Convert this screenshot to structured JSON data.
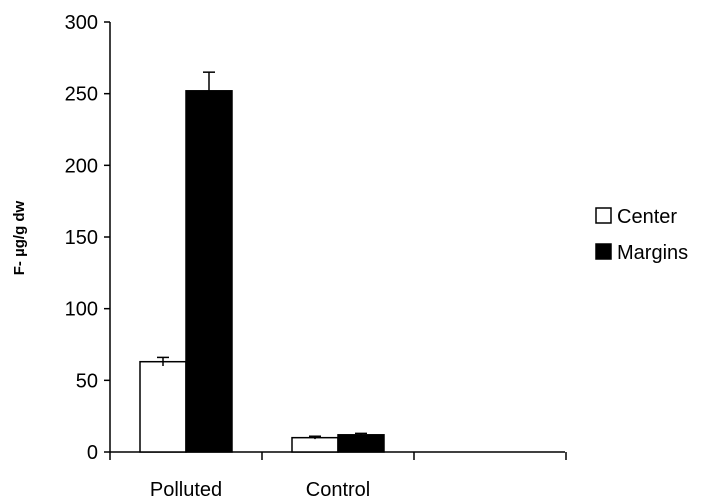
{
  "chart_data": {
    "type": "bar",
    "title": "",
    "xlabel": "",
    "ylabel": "F- µg/g dw",
    "ylim": [
      0,
      300
    ],
    "yticks": [
      0,
      50,
      100,
      150,
      200,
      250,
      300
    ],
    "categories": [
      "Polluted",
      "Control"
    ],
    "series": [
      {
        "name": "Center",
        "color": "#ffffff",
        "values": [
          63,
          10
        ],
        "errors": [
          3,
          1
        ]
      },
      {
        "name": "Margins",
        "color": "#000000",
        "values": [
          252,
          12
        ],
        "errors": [
          13,
          1
        ]
      }
    ],
    "legend_position": "right",
    "grid": false
  }
}
